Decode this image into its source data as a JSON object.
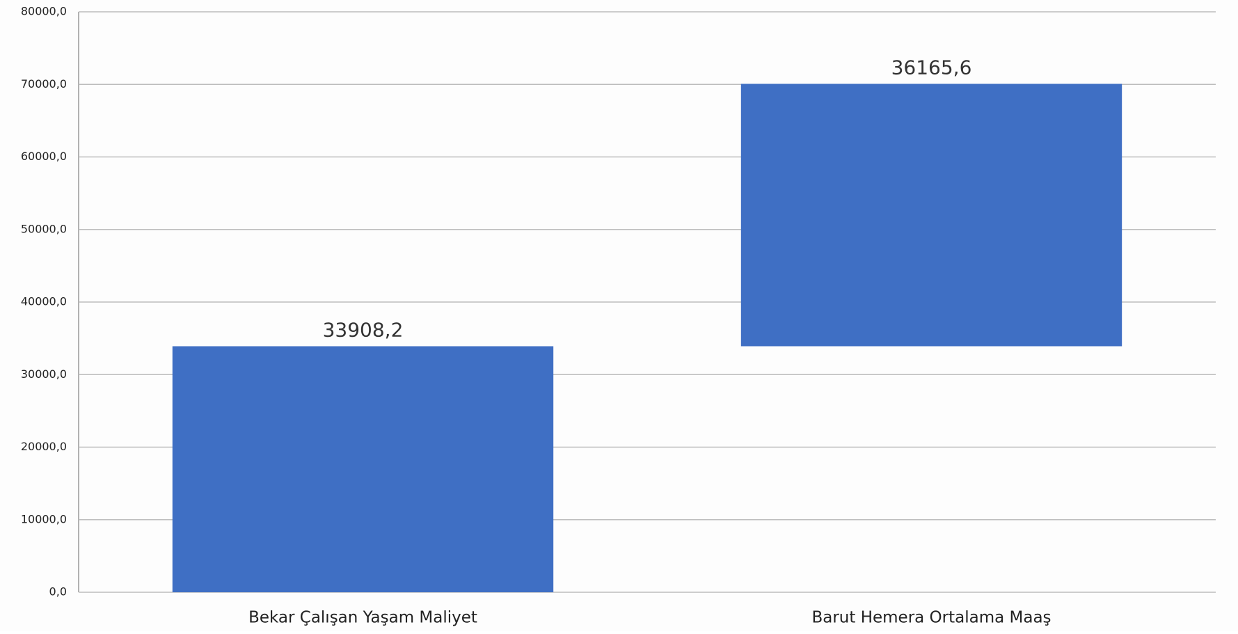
{
  "chart_data": {
    "type": "waterfall",
    "categories": [
      "Bekar Çalışan Yaşam Maliyet",
      "Barut Hemera Ortalama Maaş"
    ],
    "values": [
      33908.2,
      36165.6
    ],
    "value_labels": [
      "33908,2",
      "36165,6"
    ],
    "color": "#3f6fc4",
    "ylim": [
      0,
      80000
    ],
    "yticks": [
      {
        "value": 0,
        "label": "0,0"
      },
      {
        "value": 10000,
        "label": "10000,0"
      },
      {
        "value": 20000,
        "label": "20000,0"
      },
      {
        "value": 30000,
        "label": "30000,0"
      },
      {
        "value": 40000,
        "label": "40000,0"
      },
      {
        "value": 50000,
        "label": "50000,0"
      },
      {
        "value": 60000,
        "label": "60000,0"
      },
      {
        "value": 70000,
        "label": "70000,0"
      },
      {
        "value": 80000,
        "label": "80000,0"
      }
    ],
    "grid": true
  }
}
